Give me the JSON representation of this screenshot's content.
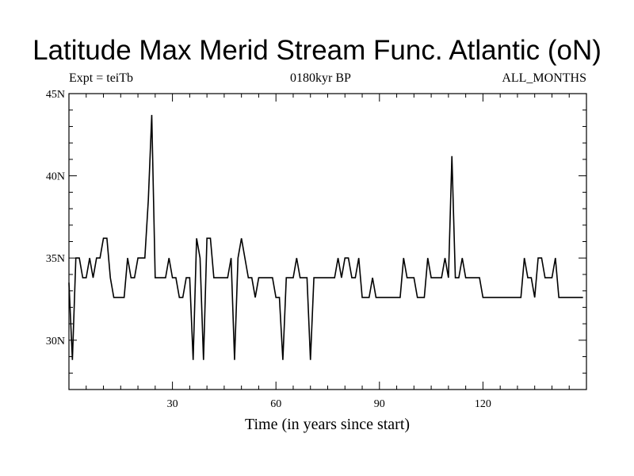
{
  "chart_data": {
    "type": "line",
    "title": "Latitude Max Merid Stream Func. Atlantic (oN)",
    "subtitle_left": "Expt = teiTb",
    "subtitle_center": "0180kyr BP",
    "subtitle_right": "ALL_MONTHS",
    "xlabel": "Time (in years since start)",
    "ylabel": "",
    "xlim": [
      0,
      150
    ],
    "ylim": [
      27,
      45
    ],
    "x_ticks": [
      30,
      60,
      90,
      120
    ],
    "x_tick_labels": [
      "30",
      "60",
      "90",
      "120"
    ],
    "y_ticks": [
      30,
      35,
      40,
      45
    ],
    "y_tick_labels": [
      "30N",
      "35N",
      "40N",
      "45N"
    ],
    "grid": false,
    "series": [
      {
        "color": "#000000",
        "x": [
          0,
          1,
          2,
          3,
          4,
          5,
          6,
          7,
          8,
          9,
          10,
          11,
          12,
          13,
          14,
          15,
          16,
          17,
          18,
          19,
          20,
          21,
          22,
          23,
          24,
          25,
          26,
          27,
          28,
          29,
          30,
          31,
          32,
          33,
          34,
          35,
          36,
          37,
          38,
          39,
          40,
          41,
          42,
          43,
          44,
          45,
          46,
          47,
          48,
          49,
          50,
          51,
          52,
          53,
          54,
          55,
          56,
          57,
          58,
          59,
          60,
          61,
          62,
          63,
          64,
          65,
          66,
          67,
          68,
          69,
          70,
          71,
          72,
          73,
          74,
          75,
          76,
          77,
          78,
          79,
          80,
          81,
          82,
          83,
          84,
          85,
          86,
          87,
          88,
          89,
          90,
          91,
          92,
          93,
          94,
          95,
          96,
          97,
          98,
          99,
          100,
          101,
          102,
          103,
          104,
          105,
          106,
          107,
          108,
          109,
          110,
          111,
          112,
          113,
          114,
          115,
          116,
          117,
          118,
          119,
          120,
          121,
          122,
          123,
          124,
          125,
          126,
          127,
          128,
          129,
          130,
          131,
          132,
          133,
          134,
          135,
          136,
          137,
          138,
          139,
          140,
          141,
          142,
          143,
          144,
          145,
          146,
          147,
          148,
          149
        ],
        "values": [
          33.5,
          28.8,
          35,
          35,
          33.8,
          33.8,
          35,
          33.8,
          35,
          35,
          36.2,
          36.2,
          33.8,
          32.6,
          32.6,
          32.6,
          32.6,
          35,
          33.8,
          33.8,
          35,
          35,
          35,
          38.5,
          43.7,
          33.8,
          33.8,
          33.8,
          33.8,
          35,
          33.8,
          33.8,
          32.6,
          32.6,
          33.8,
          33.8,
          28.8,
          36.2,
          35,
          28.8,
          36.2,
          36.2,
          33.8,
          33.8,
          33.8,
          33.8,
          33.8,
          35,
          28.8,
          35,
          36.2,
          35,
          33.8,
          33.8,
          32.6,
          33.8,
          33.8,
          33.8,
          33.8,
          33.8,
          32.6,
          32.6,
          28.8,
          33.8,
          33.8,
          33.8,
          35,
          33.8,
          33.8,
          33.8,
          28.8,
          33.8,
          33.8,
          33.8,
          33.8,
          33.8,
          33.8,
          33.8,
          35,
          33.8,
          35,
          35,
          33.8,
          33.8,
          35,
          32.6,
          32.6,
          32.6,
          33.8,
          32.6,
          32.6,
          32.6,
          32.6,
          32.6,
          32.6,
          32.6,
          32.6,
          35,
          33.8,
          33.8,
          33.8,
          32.6,
          32.6,
          32.6,
          35,
          33.8,
          33.8,
          33.8,
          33.8,
          35,
          33.8,
          41.2,
          33.8,
          33.8,
          35,
          33.8,
          33.8,
          33.8,
          33.8,
          33.8,
          32.6,
          32.6,
          32.6,
          32.6,
          32.6,
          32.6,
          32.6,
          32.6,
          32.6,
          32.6,
          32.6,
          32.6,
          35,
          33.8,
          33.8,
          32.6,
          35,
          35,
          33.8,
          33.8,
          33.8,
          35,
          32.6,
          32.6,
          32.6,
          32.6,
          32.6,
          32.6,
          32.6,
          32.6
        ]
      }
    ]
  }
}
